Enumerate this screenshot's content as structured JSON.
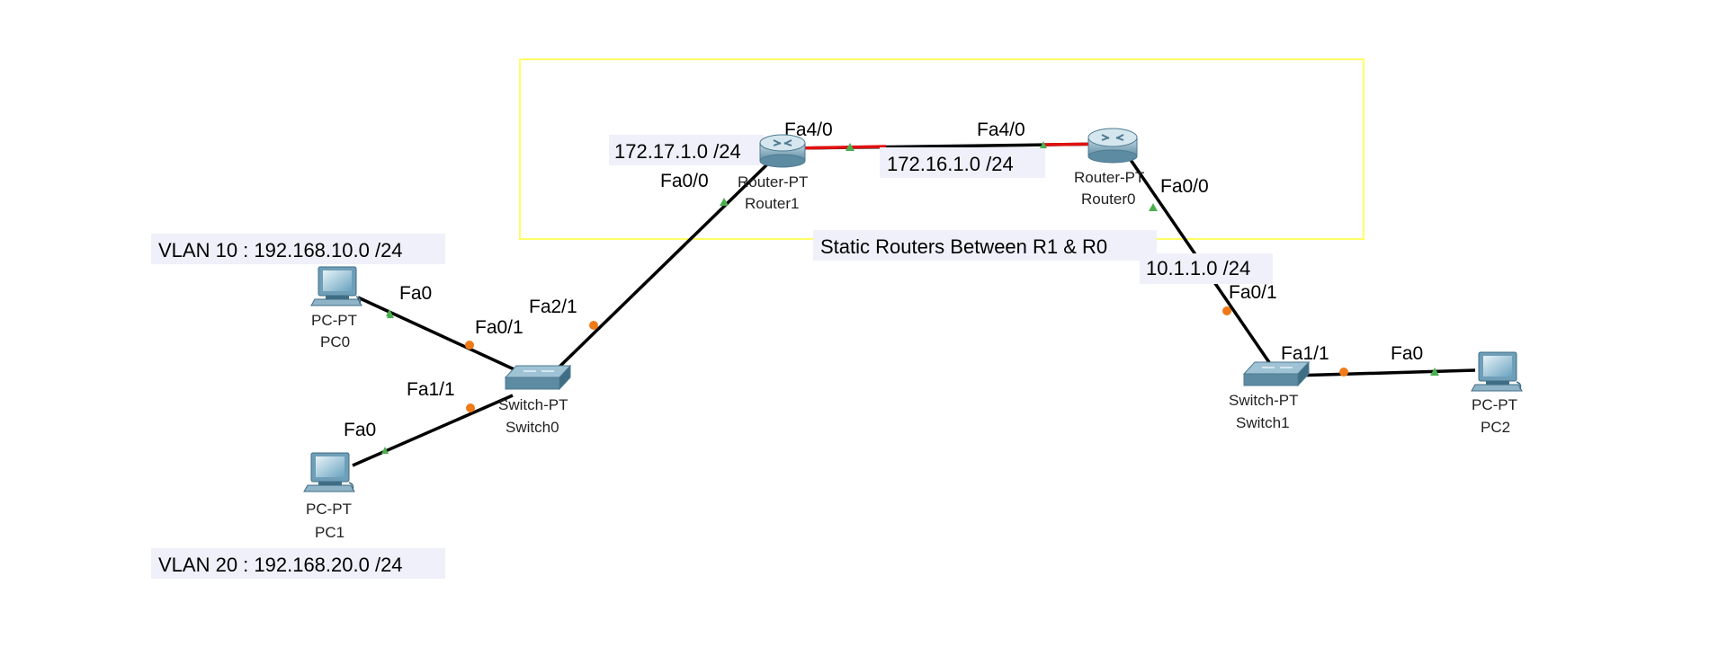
{
  "area": {
    "title": "Static Routers Between R1 & R0",
    "border_color": "#ffff66"
  },
  "colors": {
    "link": "#000000",
    "link_down": "#e01010",
    "port_up": "#4caf50",
    "port_wait": "#f07a18"
  },
  "devices": {
    "router1": {
      "model": "Router-PT",
      "name": "Router1",
      "icon": "router-icon"
    },
    "router0": {
      "model": "Router-PT",
      "name": "Router0",
      "icon": "router-icon"
    },
    "switch0": {
      "model": "Switch-PT",
      "name": "Switch0",
      "icon": "switch-icon"
    },
    "switch1": {
      "model": "Switch-PT",
      "name": "Switch1",
      "icon": "switch-icon"
    },
    "pc0": {
      "model": "PC-PT",
      "name": "PC0",
      "icon": "pc-icon"
    },
    "pc1": {
      "model": "PC-PT",
      "name": "PC1",
      "icon": "pc-icon"
    },
    "pc2": {
      "model": "PC-PT",
      "name": "PC2",
      "icon": "pc-icon"
    }
  },
  "networks": {
    "vlan10": "VLAN 10 : 192.168.10.0 /24",
    "vlan20": "VLAN 20 : 192.168.20.0 /24",
    "r1_lan": "172.17.1.0 /24",
    "r_link": "172.16.1.0 /24",
    "r0_lan": "10.1.1.0 /24"
  },
  "ports": {
    "pc0_fa0": "Fa0",
    "sw0_fa0_1": "Fa0/1",
    "pc1_fa0": "Fa0",
    "sw0_fa1_1": "Fa1/1",
    "sw0_fa2_1": "Fa2/1",
    "r1_fa0_0": "Fa0/0",
    "r1_fa4_0": "Fa4/0",
    "r0_fa4_0": "Fa4/0",
    "r0_fa0_0": "Fa0/0",
    "sw1_fa0_1": "Fa0/1",
    "sw1_fa1_1": "Fa1/1",
    "pc2_fa0": "Fa0"
  }
}
